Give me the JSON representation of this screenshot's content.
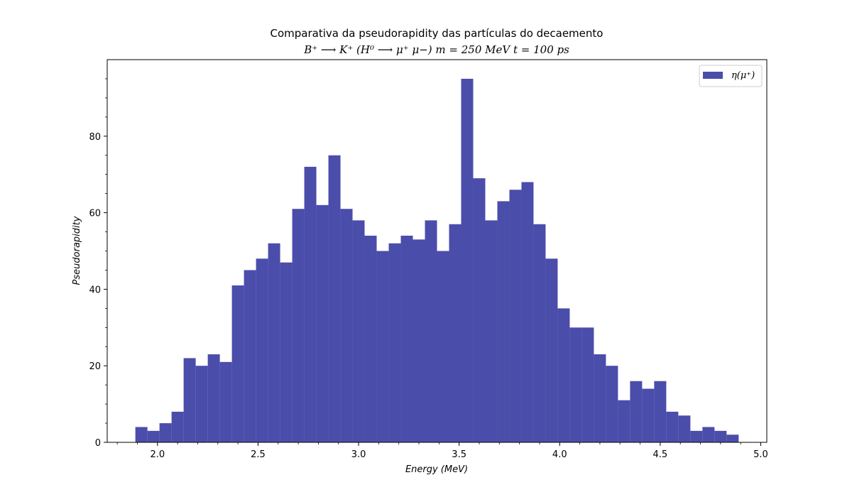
{
  "chart_data": {
    "type": "bar",
    "title": "Comparativa da pseudorapidity das partículas do decaemento",
    "subtitle": "B⁺ ⟶ K⁺ (H⁰ ⟶ μ⁺ μ−)   m = 250 MeV   t = 100 ps",
    "xlabel": "Energy (MeV)",
    "ylabel": "Pseudorapidity",
    "xlim": [
      1.75,
      5.03
    ],
    "ylim": [
      0,
      100
    ],
    "bin_start": 1.89,
    "bin_width": 0.06,
    "values": [
      4,
      3,
      5,
      8,
      22,
      20,
      23,
      21,
      41,
      45,
      48,
      52,
      47,
      61,
      72,
      62,
      75,
      61,
      58,
      54,
      50,
      52,
      54,
      53,
      58,
      50,
      57,
      95,
      69,
      58,
      63,
      66,
      68,
      57,
      48,
      35,
      30,
      30,
      23,
      20,
      11,
      16,
      14,
      16,
      8,
      7,
      3,
      4,
      3,
      2
    ],
    "xticks": [
      "2.0",
      "2.5",
      "3.0",
      "3.5",
      "4.0",
      "4.5",
      "5.0"
    ],
    "yticks": [
      "0",
      "20",
      "40",
      "60",
      "80"
    ],
    "legend": [
      {
        "name": "η(μ⁺)",
        "color": "#4b4dab"
      }
    ],
    "legend_position": "top-right",
    "bar_color": "#4b4dab",
    "grid": false
  }
}
